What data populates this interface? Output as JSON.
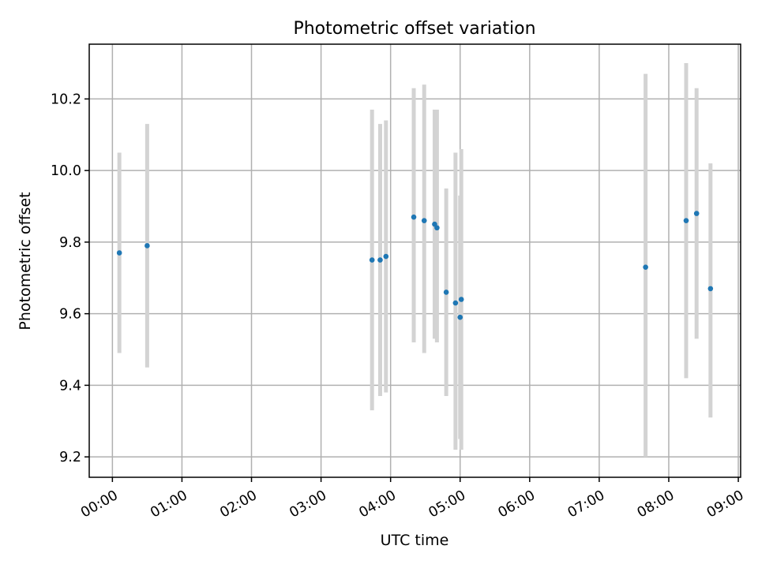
{
  "chart_data": {
    "type": "scatter",
    "title": "Photometric offset variation",
    "xlabel": "UTC time",
    "ylabel": "Photometric offset",
    "xlim": [
      "23:40",
      "09:02"
    ],
    "ylim": [
      9.143,
      10.353
    ],
    "grid": true,
    "x_ticks": [
      "00:00",
      "01:00",
      "02:00",
      "03:00",
      "04:00",
      "05:00",
      "06:00",
      "07:00",
      "08:00",
      "09:00"
    ],
    "y_ticks": [
      9.2,
      9.4,
      9.6,
      9.8,
      10.0,
      10.2
    ],
    "y_tick_labels": [
      "9.2",
      "9.4",
      "9.6",
      "9.8",
      "10.0",
      "10.2"
    ],
    "colors": {
      "point": "#1f77b4",
      "errorbar": "#d3d3d3",
      "grid": "#b0b0b0"
    },
    "series": [
      {
        "points": [
          {
            "x": "00:06",
            "y": 9.77,
            "yerr_low": 9.49,
            "yerr_high": 10.05
          },
          {
            "x": "00:30",
            "y": 9.79,
            "yerr_low": 9.45,
            "yerr_high": 10.13
          },
          {
            "x": "03:44",
            "y": 9.75,
            "yerr_low": 9.33,
            "yerr_high": 10.17
          },
          {
            "x": "03:51",
            "y": 9.75,
            "yerr_low": 9.37,
            "yerr_high": 10.13
          },
          {
            "x": "03:56",
            "y": 9.76,
            "yerr_low": 9.38,
            "yerr_high": 10.14
          },
          {
            "x": "04:20",
            "y": 9.87,
            "yerr_low": 9.52,
            "yerr_high": 10.23
          },
          {
            "x": "04:29",
            "y": 9.86,
            "yerr_low": 9.49,
            "yerr_high": 10.24
          },
          {
            "x": "04:38",
            "y": 9.85,
            "yerr_low": 9.53,
            "yerr_high": 10.17
          },
          {
            "x": "04:40",
            "y": 9.84,
            "yerr_low": 9.52,
            "yerr_high": 10.17
          },
          {
            "x": "04:48",
            "y": 9.66,
            "yerr_low": 9.37,
            "yerr_high": 9.95
          },
          {
            "x": "04:56",
            "y": 9.63,
            "yerr_low": 9.22,
            "yerr_high": 10.05
          },
          {
            "x": "05:00",
            "y": 9.59,
            "yerr_low": 9.25,
            "yerr_high": 9.93
          },
          {
            "x": "05:01",
            "y": 9.64,
            "yerr_low": 9.22,
            "yerr_high": 10.06
          },
          {
            "x": "07:40",
            "y": 9.73,
            "yerr_low": 9.2,
            "yerr_high": 10.27
          },
          {
            "x": "08:15",
            "y": 9.86,
            "yerr_low": 9.42,
            "yerr_high": 10.3
          },
          {
            "x": "08:24",
            "y": 9.88,
            "yerr_low": 9.53,
            "yerr_high": 10.23
          },
          {
            "x": "08:36",
            "y": 9.67,
            "yerr_low": 9.31,
            "yerr_high": 10.02
          }
        ]
      }
    ]
  }
}
